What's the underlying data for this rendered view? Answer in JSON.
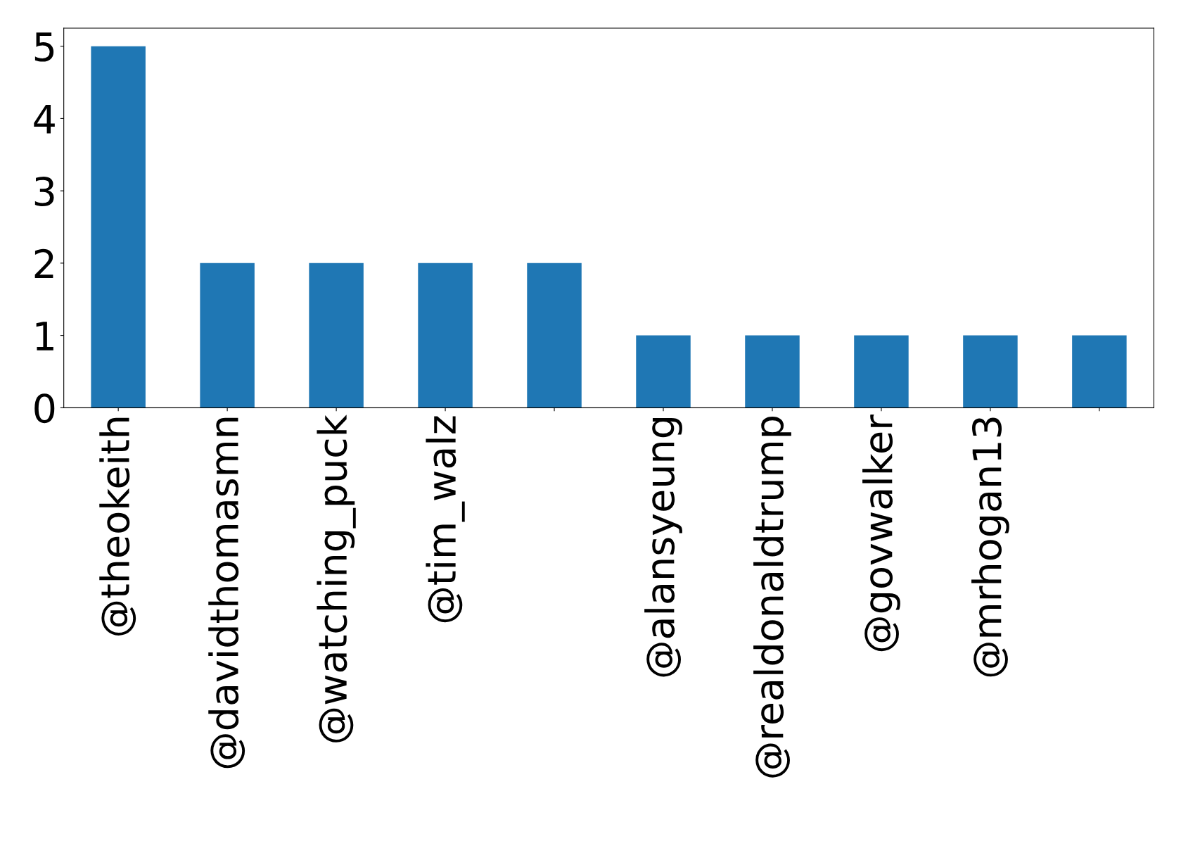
{
  "chart_data": {
    "type": "bar",
    "categories": [
      "@theokeith",
      "@davidthomasmn",
      "@watching_puck",
      "@tim_walz",
      null,
      "@alansyeung",
      "@realdonaldtrump",
      "@govwalker",
      "@mrhogan13",
      null
    ],
    "values": [
      5,
      2,
      2,
      2,
      2,
      1,
      1,
      1,
      1,
      1
    ],
    "color": "#1f77b4",
    "ylim": [
      0,
      5.25
    ],
    "yticks": [
      0,
      1,
      2,
      3,
      4,
      5
    ],
    "grid": false,
    "legend": false
  }
}
